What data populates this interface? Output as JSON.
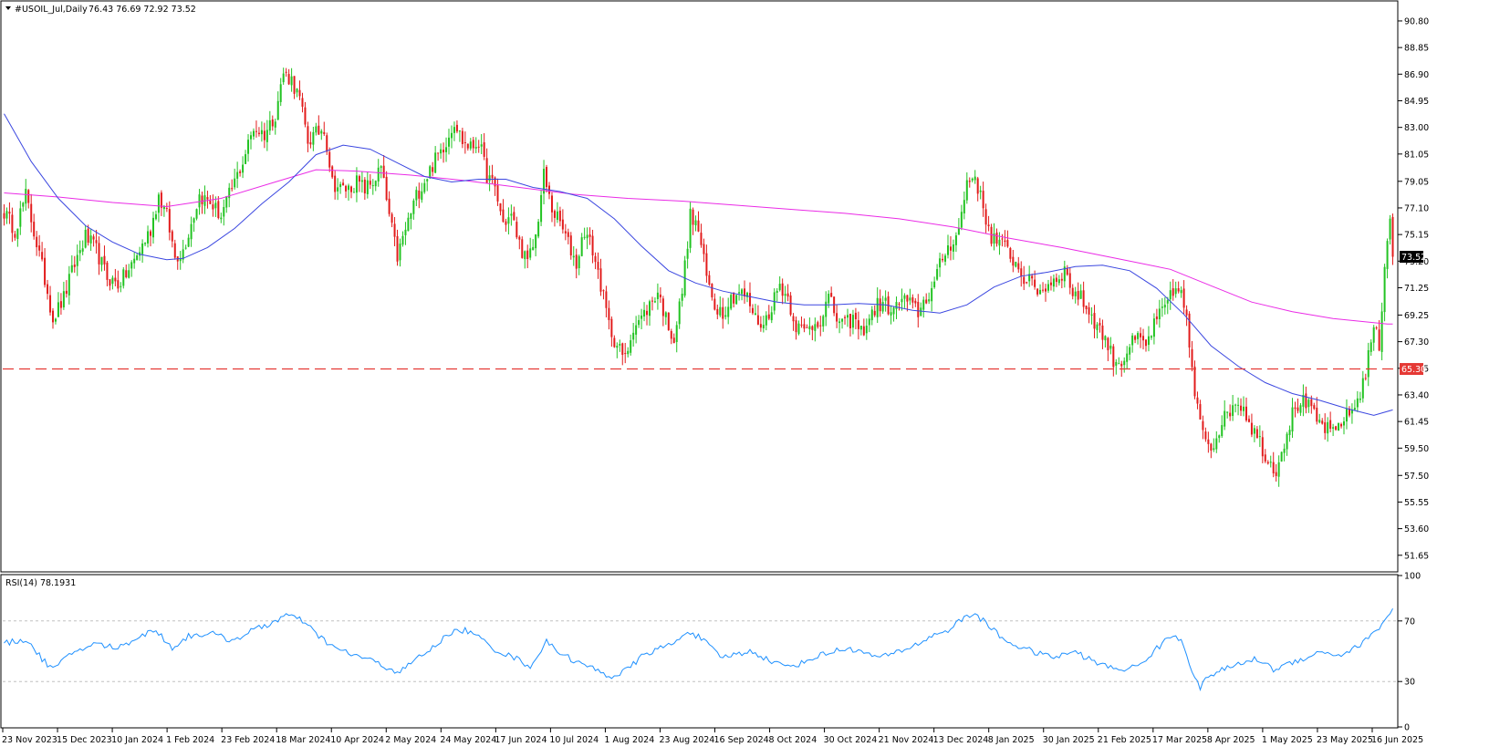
{
  "header": {
    "symbol_label": "#USOIL_Jul,Daily",
    "ohlc_label": "76.43 76.69 72.92 73.52"
  },
  "rsi_panel": {
    "label": "RSI(14) 78.1931"
  },
  "colors": {
    "bull": "#22c322",
    "bear": "#e21c1c",
    "ma_fast": "#3b47e0",
    "ma_slow": "#ea2be6",
    "rsi_line": "#1e90ff",
    "support_line": "#e53935",
    "grid": "#c0c0c0",
    "axis": "#000000"
  },
  "icons": {
    "menu": "triangle-down-icon"
  },
  "chart_data": {
    "type": "candlestick",
    "symbol": "#USOIL_Jul",
    "timeframe": "Daily",
    "last_ohlc": {
      "open": 76.43,
      "high": 76.69,
      "low": 72.92,
      "close": 73.52
    },
    "price_axis": {
      "ylim": [
        50.5,
        92.2
      ],
      "ticks": [
        90.8,
        88.85,
        86.9,
        84.95,
        83.0,
        81.05,
        79.05,
        77.1,
        75.15,
        73.2,
        71.25,
        69.25,
        67.3,
        65.35,
        63.4,
        61.45,
        59.5,
        57.5,
        55.55,
        53.6,
        51.65
      ]
    },
    "current_price_label": "73.52",
    "support_level": {
      "value": 65.3,
      "label": "65.30",
      "style": "dashed"
    },
    "x_axis_ticks": [
      "23 Nov 2023",
      "15 Dec 2023",
      "10 Jan 2024",
      "1 Feb 2024",
      "23 Feb 2024",
      "18 Mar 2024",
      "10 Apr 2024",
      "2 May 2024",
      "24 May 2024",
      "17 Jun 2024",
      "10 Jul 2024",
      "1 Aug 2024",
      "23 Aug 2024",
      "16 Sep 2024",
      "8 Oct 2024",
      "30 Oct 2024",
      "21 Nov 2024",
      "13 Dec 2024",
      "8 Jan 2025",
      "30 Jan 2025",
      "21 Feb 2025",
      "17 Mar 2025",
      "8 Apr 2025",
      "1 May 2025",
      "23 May 2025",
      "16 Jun 2025"
    ],
    "price_path": [
      [
        0,
        76.8
      ],
      [
        4,
        75.5
      ],
      [
        8,
        78.0
      ],
      [
        12,
        74.5
      ],
      [
        16,
        71.0
      ],
      [
        18,
        69.0
      ],
      [
        22,
        70.5
      ],
      [
        26,
        73.0
      ],
      [
        30,
        75.0
      ],
      [
        34,
        74.0
      ],
      [
        38,
        72.0
      ],
      [
        42,
        71.5
      ],
      [
        46,
        72.5
      ],
      [
        50,
        74.0
      ],
      [
        54,
        75.5
      ],
      [
        57,
        78.0
      ],
      [
        60,
        76.5
      ],
      [
        63,
        73.5
      ],
      [
        66,
        74.0
      ],
      [
        69,
        76.0
      ],
      [
        72,
        78.0
      ],
      [
        76,
        77.5
      ],
      [
        80,
        76.5
      ],
      [
        84,
        78.5
      ],
      [
        88,
        80.5
      ],
      [
        92,
        83.0
      ],
      [
        96,
        82.5
      ],
      [
        100,
        84.0
      ],
      [
        103,
        87.0
      ],
      [
        106,
        86.5
      ],
      [
        109,
        85.0
      ],
      [
        112,
        82.0
      ],
      [
        115,
        82.5
      ],
      [
        118,
        83.0
      ],
      [
        121,
        79.0
      ],
      [
        124,
        78.5
      ],
      [
        127,
        78.5
      ],
      [
        130,
        79.0
      ],
      [
        133,
        78.5
      ],
      [
        136,
        79.0
      ],
      [
        139,
        80.0
      ],
      [
        142,
        76.5
      ],
      [
        145,
        73.5
      ],
      [
        148,
        75.5
      ],
      [
        152,
        78.0
      ],
      [
        156,
        79.5
      ],
      [
        160,
        81.0
      ],
      [
        163,
        82.0
      ],
      [
        166,
        83.5
      ],
      [
        169,
        82.0
      ],
      [
        172,
        81.5
      ],
      [
        175,
        82.0
      ],
      [
        178,
        79.5
      ],
      [
        181,
        78.5
      ],
      [
        184,
        76.0
      ],
      [
        187,
        76.5
      ],
      [
        190,
        74.5
      ],
      [
        193,
        73.0
      ],
      [
        196,
        75.0
      ],
      [
        199,
        79.5
      ],
      [
        202,
        77.0
      ],
      [
        205,
        76.0
      ],
      [
        208,
        74.5
      ],
      [
        211,
        73.0
      ],
      [
        214,
        75.5
      ],
      [
        217,
        74.0
      ],
      [
        220,
        71.5
      ],
      [
        223,
        68.5
      ],
      [
        226,
        67.0
      ],
      [
        229,
        66.0
      ],
      [
        232,
        68.5
      ],
      [
        235,
        69.0
      ],
      [
        238,
        70.0
      ],
      [
        241,
        71.0
      ],
      [
        244,
        69.0
      ],
      [
        247,
        67.5
      ],
      [
        250,
        71.0
      ],
      [
        253,
        76.5
      ],
      [
        256,
        75.5
      ],
      [
        259,
        72.0
      ],
      [
        262,
        70.0
      ],
      [
        265,
        69.5
      ],
      [
        268,
        70.5
      ],
      [
        271,
        71.0
      ],
      [
        274,
        70.5
      ],
      [
        277,
        69.0
      ],
      [
        280,
        68.5
      ],
      [
        283,
        70.0
      ],
      [
        286,
        71.5
      ],
      [
        289,
        70.5
      ],
      [
        292,
        68.5
      ],
      [
        295,
        68.0
      ],
      [
        298,
        68.5
      ],
      [
        301,
        69.0
      ],
      [
        304,
        70.5
      ],
      [
        307,
        69.0
      ],
      [
        310,
        68.5
      ],
      [
        313,
        69.0
      ],
      [
        316,
        68.0
      ],
      [
        319,
        69.0
      ],
      [
        322,
        70.0
      ],
      [
        325,
        70.0
      ],
      [
        328,
        69.5
      ],
      [
        331,
        70.5
      ],
      [
        334,
        70.0
      ],
      [
        337,
        69.5
      ],
      [
        340,
        70.5
      ],
      [
        343,
        71.5
      ],
      [
        346,
        73.5
      ],
      [
        349,
        74.5
      ],
      [
        352,
        75.5
      ],
      [
        355,
        79.0
      ],
      [
        358,
        79.5
      ],
      [
        361,
        77.0
      ],
      [
        364,
        75.0
      ],
      [
        367,
        74.5
      ],
      [
        370,
        74.0
      ],
      [
        373,
        73.0
      ],
      [
        376,
        72.0
      ],
      [
        379,
        71.5
      ],
      [
        382,
        71.0
      ],
      [
        385,
        71.5
      ],
      [
        388,
        72.0
      ],
      [
        391,
        72.5
      ],
      [
        394,
        71.0
      ],
      [
        397,
        70.5
      ],
      [
        400,
        69.5
      ],
      [
        403,
        68.5
      ],
      [
        406,
        67.5
      ],
      [
        409,
        66.0
      ],
      [
        412,
        65.8
      ],
      [
        415,
        67.0
      ],
      [
        418,
        67.5
      ],
      [
        421,
        67.0
      ],
      [
        424,
        68.5
      ],
      [
        427,
        69.5
      ],
      [
        430,
        70.5
      ],
      [
        433,
        71.5
      ],
      [
        436,
        69.0
      ],
      [
        439,
        63.0
      ],
      [
        442,
        61.0
      ],
      [
        445,
        59.5
      ],
      [
        448,
        61.0
      ],
      [
        451,
        62.0
      ],
      [
        454,
        63.0
      ],
      [
        457,
        62.5
      ],
      [
        460,
        61.0
      ],
      [
        463,
        60.0
      ],
      [
        466,
        58.5
      ],
      [
        469,
        58.0
      ],
      [
        472,
        60.0
      ],
      [
        475,
        62.0
      ],
      [
        478,
        63.0
      ],
      [
        481,
        62.5
      ],
      [
        484,
        61.5
      ],
      [
        487,
        61.0
      ],
      [
        490,
        60.5
      ],
      [
        493,
        61.5
      ],
      [
        496,
        62.0
      ],
      [
        499,
        63.0
      ],
      [
        502,
        65.0
      ],
      [
        505,
        68.5
      ],
      [
        507,
        67.0
      ],
      [
        509,
        73.0
      ],
      [
        511,
        76.5
      ],
      [
        512,
        73.52
      ]
    ],
    "ma_fast": {
      "color": "blue",
      "points": [
        [
          0,
          84.0
        ],
        [
          10,
          80.5
        ],
        [
          20,
          77.8
        ],
        [
          30,
          75.8
        ],
        [
          40,
          74.6
        ],
        [
          50,
          73.7
        ],
        [
          60,
          73.3
        ],
        [
          66,
          73.4
        ],
        [
          75,
          74.2
        ],
        [
          85,
          75.6
        ],
        [
          95,
          77.4
        ],
        [
          105,
          79.0
        ],
        [
          115,
          81.0
        ],
        [
          125,
          81.7
        ],
        [
          135,
          81.4
        ],
        [
          145,
          80.4
        ],
        [
          155,
          79.4
        ],
        [
          165,
          79.0
        ],
        [
          175,
          79.2
        ],
        [
          185,
          79.2
        ],
        [
          195,
          78.6
        ],
        [
          205,
          78.3
        ],
        [
          215,
          77.8
        ],
        [
          225,
          76.3
        ],
        [
          235,
          74.3
        ],
        [
          245,
          72.5
        ],
        [
          255,
          71.6
        ],
        [
          265,
          71.0
        ],
        [
          275,
          70.6
        ],
        [
          285,
          70.2
        ],
        [
          295,
          70.0
        ],
        [
          305,
          70.0
        ],
        [
          315,
          70.1
        ],
        [
          325,
          70.0
        ],
        [
          335,
          69.6
        ],
        [
          345,
          69.4
        ],
        [
          355,
          70.0
        ],
        [
          365,
          71.3
        ],
        [
          375,
          72.1
        ],
        [
          385,
          72.4
        ],
        [
          395,
          72.8
        ],
        [
          405,
          72.9
        ],
        [
          415,
          72.5
        ],
        [
          425,
          71.2
        ],
        [
          435,
          69.3
        ],
        [
          445,
          67.0
        ],
        [
          455,
          65.5
        ],
        [
          465,
          64.3
        ],
        [
          475,
          63.5
        ],
        [
          485,
          63.0
        ],
        [
          495,
          62.4
        ],
        [
          505,
          61.9
        ],
        [
          512,
          62.3
        ]
      ]
    },
    "ma_slow": {
      "color": "magenta",
      "points": [
        [
          0,
          78.2
        ],
        [
          20,
          77.9
        ],
        [
          40,
          77.5
        ],
        [
          60,
          77.2
        ],
        [
          80,
          77.8
        ],
        [
          100,
          79.0
        ],
        [
          115,
          79.9
        ],
        [
          130,
          79.8
        ],
        [
          150,
          79.5
        ],
        [
          170,
          79.1
        ],
        [
          190,
          78.6
        ],
        [
          210,
          78.1
        ],
        [
          230,
          77.8
        ],
        [
          250,
          77.6
        ],
        [
          270,
          77.3
        ],
        [
          290,
          77.0
        ],
        [
          310,
          76.7
        ],
        [
          330,
          76.3
        ],
        [
          350,
          75.7
        ],
        [
          370,
          74.9
        ],
        [
          390,
          74.2
        ],
        [
          410,
          73.4
        ],
        [
          430,
          72.6
        ],
        [
          445,
          71.4
        ],
        [
          460,
          70.2
        ],
        [
          475,
          69.5
        ],
        [
          490,
          69.0
        ],
        [
          500,
          68.8
        ],
        [
          510,
          68.6
        ],
        [
          512,
          68.6
        ]
      ]
    },
    "rsi": {
      "period": 14,
      "value": 78.1931,
      "ylim": [
        0,
        100
      ],
      "ticks": [
        100,
        70,
        30,
        0
      ],
      "levels": [
        70,
        30
      ],
      "points": [
        [
          0,
          55
        ],
        [
          8,
          58
        ],
        [
          14,
          45
        ],
        [
          18,
          38
        ],
        [
          26,
          50
        ],
        [
          34,
          55
        ],
        [
          42,
          52
        ],
        [
          50,
          60
        ],
        [
          56,
          64
        ],
        [
          62,
          52
        ],
        [
          68,
          60
        ],
        [
          76,
          62
        ],
        [
          84,
          57
        ],
        [
          92,
          64
        ],
        [
          98,
          68
        ],
        [
          104,
          74
        ],
        [
          110,
          70
        ],
        [
          116,
          60
        ],
        [
          122,
          52
        ],
        [
          128,
          48
        ],
        [
          134,
          45
        ],
        [
          140,
          40
        ],
        [
          146,
          36
        ],
        [
          152,
          45
        ],
        [
          158,
          52
        ],
        [
          164,
          62
        ],
        [
          170,
          64
        ],
        [
          176,
          58
        ],
        [
          182,
          50
        ],
        [
          188,
          46
        ],
        [
          194,
          40
        ],
        [
          200,
          56
        ],
        [
          206,
          48
        ],
        [
          212,
          42
        ],
        [
          218,
          38
        ],
        [
          224,
          33
        ],
        [
          230,
          38
        ],
        [
          236,
          48
        ],
        [
          242,
          52
        ],
        [
          248,
          56
        ],
        [
          252,
          64
        ],
        [
          258,
          57
        ],
        [
          264,
          46
        ],
        [
          270,
          48
        ],
        [
          276,
          50
        ],
        [
          282,
          44
        ],
        [
          288,
          40
        ],
        [
          294,
          42
        ],
        [
          300,
          47
        ],
        [
          306,
          50
        ],
        [
          312,
          52
        ],
        [
          318,
          48
        ],
        [
          324,
          46
        ],
        [
          330,
          50
        ],
        [
          336,
          54
        ],
        [
          342,
          60
        ],
        [
          348,
          64
        ],
        [
          354,
          72
        ],
        [
          358,
          75
        ],
        [
          364,
          65
        ],
        [
          370,
          56
        ],
        [
          376,
          52
        ],
        [
          382,
          48
        ],
        [
          388,
          46
        ],
        [
          394,
          50
        ],
        [
          400,
          45
        ],
        [
          406,
          40
        ],
        [
          412,
          38
        ],
        [
          418,
          40
        ],
        [
          424,
          50
        ],
        [
          430,
          60
        ],
        [
          434,
          58
        ],
        [
          438,
          38
        ],
        [
          441,
          25
        ],
        [
          444,
          34
        ],
        [
          450,
          38
        ],
        [
          456,
          42
        ],
        [
          462,
          45
        ],
        [
          468,
          38
        ],
        [
          474,
          42
        ],
        [
          480,
          46
        ],
        [
          486,
          50
        ],
        [
          492,
          47
        ],
        [
          498,
          52
        ],
        [
          504,
          60
        ],
        [
          508,
          68
        ],
        [
          512,
          78
        ]
      ]
    }
  }
}
